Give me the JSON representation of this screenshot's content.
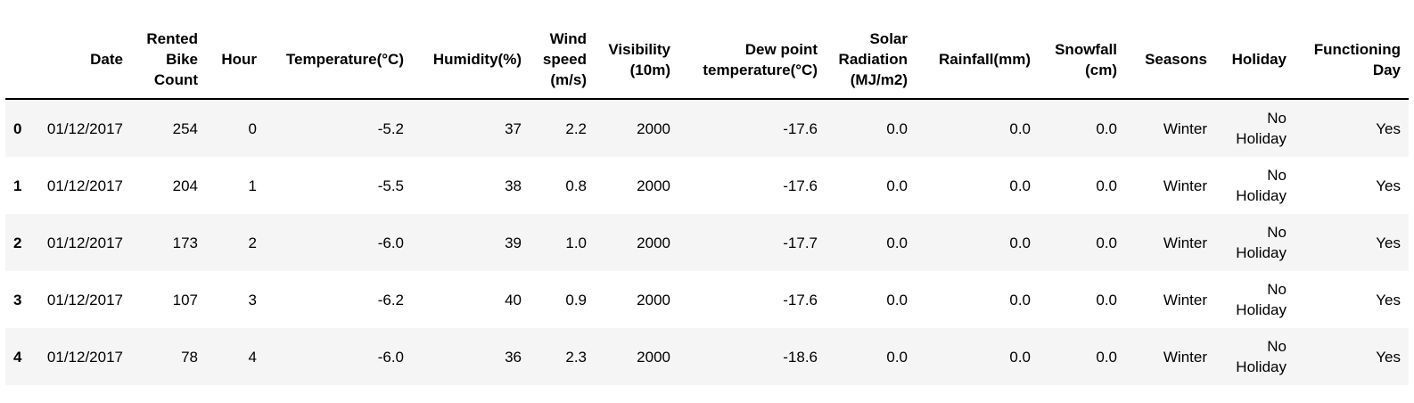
{
  "table": {
    "description": "pandas DataFrame head preview of Seoul bike sharing dataset",
    "index_header": "",
    "columns": [
      "Date",
      "Rented Bike Count",
      "Hour",
      "Temperature(°C)",
      "Humidity(%)",
      "Wind speed (m/s)",
      "Visibility (10m)",
      "Dew point temperature(°C)",
      "Solar Radiation (MJ/m2)",
      "Rainfall(mm)",
      "Snowfall (cm)",
      "Seasons",
      "Holiday",
      "Functioning Day"
    ],
    "rows": [
      {
        "index": "0",
        "cells": [
          "01/12/2017",
          "254",
          "0",
          "-5.2",
          "37",
          "2.2",
          "2000",
          "-17.6",
          "0.0",
          "0.0",
          "0.0",
          "Winter",
          "No Holiday",
          "Yes"
        ]
      },
      {
        "index": "1",
        "cells": [
          "01/12/2017",
          "204",
          "1",
          "-5.5",
          "38",
          "0.8",
          "2000",
          "-17.6",
          "0.0",
          "0.0",
          "0.0",
          "Winter",
          "No Holiday",
          "Yes"
        ]
      },
      {
        "index": "2",
        "cells": [
          "01/12/2017",
          "173",
          "2",
          "-6.0",
          "39",
          "1.0",
          "2000",
          "-17.7",
          "0.0",
          "0.0",
          "0.0",
          "Winter",
          "No Holiday",
          "Yes"
        ]
      },
      {
        "index": "3",
        "cells": [
          "01/12/2017",
          "107",
          "3",
          "-6.2",
          "40",
          "0.9",
          "2000",
          "-17.6",
          "0.0",
          "0.0",
          "0.0",
          "Winter",
          "No Holiday",
          "Yes"
        ]
      },
      {
        "index": "4",
        "cells": [
          "01/12/2017",
          "78",
          "4",
          "-6.0",
          "36",
          "2.3",
          "2000",
          "-18.6",
          "0.0",
          "0.0",
          "0.0",
          "Winter",
          "No Holiday",
          "Yes"
        ]
      }
    ]
  },
  "colors": {
    "background": "#ffffff",
    "row_stripe": "#f5f5f5",
    "header_rule": "#000000",
    "text": "#000000"
  }
}
